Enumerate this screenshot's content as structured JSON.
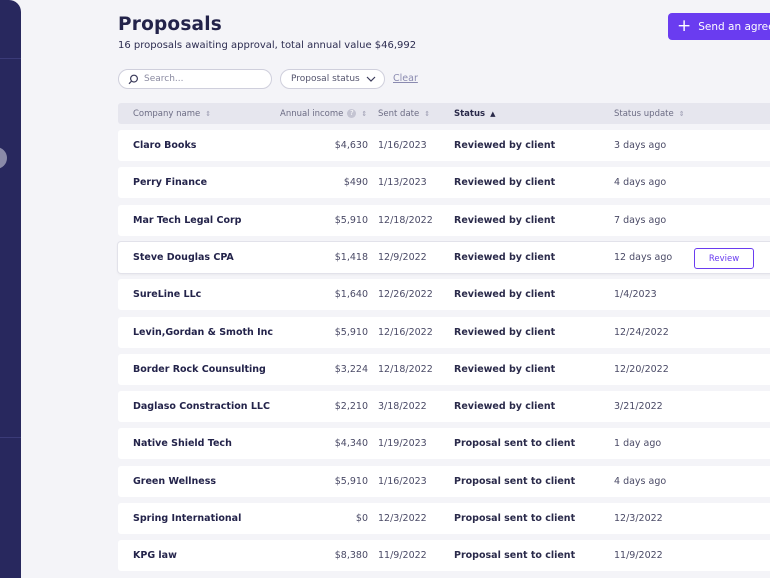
{
  "header": {
    "title": "Proposals",
    "subtitle": "16 proposals awaiting approval, total annual value $46,992",
    "send_label": "Send an agree"
  },
  "filters": {
    "search_placeholder": "Search...",
    "status_label": "Proposal status",
    "clear_label": "Clear"
  },
  "table": {
    "headers": {
      "company": "Company name",
      "income": "Annual income",
      "sent": "Sent date",
      "status": "Status",
      "update": "Status update"
    },
    "review_label": "Review",
    "rows": [
      {
        "company": "Claro Books",
        "income": "$4,630",
        "sent": "1/16/2023",
        "status": "Reviewed by client",
        "update": "3 days ago"
      },
      {
        "company": "Perry Finance",
        "income": "$490",
        "sent": "1/13/2023",
        "status": "Reviewed by client",
        "update": "4 days ago"
      },
      {
        "company": "Mar Tech Legal Corp",
        "income": "$5,910",
        "sent": "12/18/2022",
        "status": "Reviewed by client",
        "update": "7 days ago"
      },
      {
        "company": "Steve Douglas CPA",
        "income": "$1,418",
        "sent": "12/9/2022",
        "status": "Reviewed by client",
        "update": "12 days ago"
      },
      {
        "company": "SureLine LLc",
        "income": "$1,640",
        "sent": "12/26/2022",
        "status": "Reviewed by client",
        "update": "1/4/2023"
      },
      {
        "company": "Levin,Gordan & Smoth Inc",
        "income": "$5,910",
        "sent": "12/16/2022",
        "status": "Reviewed by client",
        "update": "12/24/2022"
      },
      {
        "company": "Border Rock Counsulting",
        "income": "$3,224",
        "sent": "12/18/2022",
        "status": "Reviewed by client",
        "update": "12/20/2022"
      },
      {
        "company": "Daglaso Constraction LLC",
        "income": "$2,210",
        "sent": "3/18/2022",
        "status": "Reviewed by client",
        "update": "3/21/2022"
      },
      {
        "company": "Native Shield Tech",
        "income": "$4,340",
        "sent": "1/19/2023",
        "status": "Proposal sent to client",
        "update": "1 day ago"
      },
      {
        "company": "Green Wellness",
        "income": "$5,910",
        "sent": "1/16/2023",
        "status": "Proposal sent to client",
        "update": "4 days ago"
      },
      {
        "company": "Spring International",
        "income": "$0",
        "sent": "12/3/2022",
        "status": "Proposal sent to client",
        "update": "12/3/2022"
      },
      {
        "company": "KPG law",
        "income": "$8,380",
        "sent": "11/9/2022",
        "status": "Proposal sent to client",
        "update": "11/9/2022"
      }
    ]
  },
  "colors": {
    "accent": "#6a3cf0",
    "sidebar": "#28285e",
    "background": "#f4f4f8"
  }
}
